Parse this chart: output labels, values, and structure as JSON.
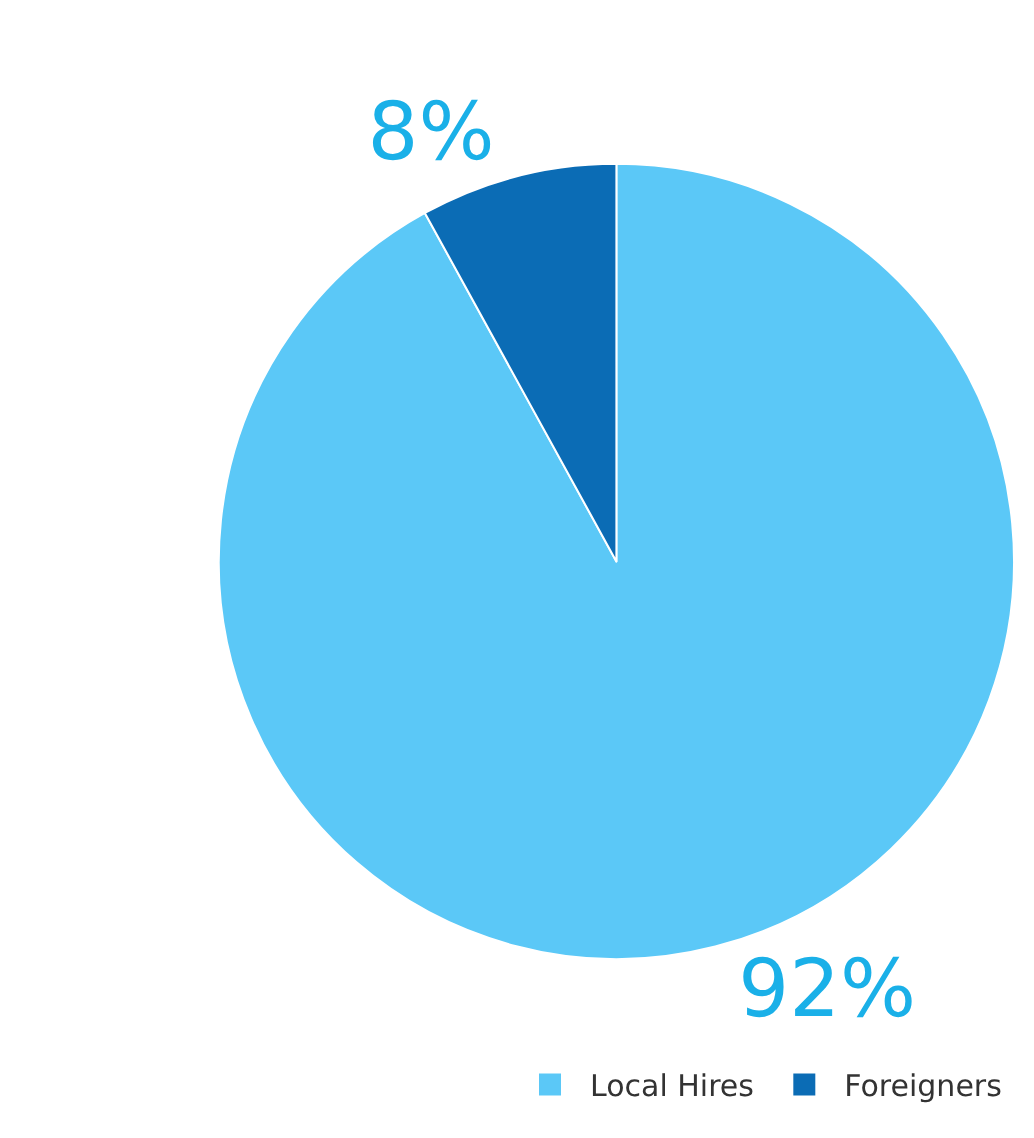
{
  "chart_data": {
    "type": "pie",
    "categories": [
      "Local Hires",
      "Foreigners"
    ],
    "values": [
      92,
      8
    ],
    "colors": [
      "#5bc8f7",
      "#0b6cb5"
    ],
    "value_labels": [
      "92%",
      "8%"
    ],
    "legend": "bottom right"
  }
}
